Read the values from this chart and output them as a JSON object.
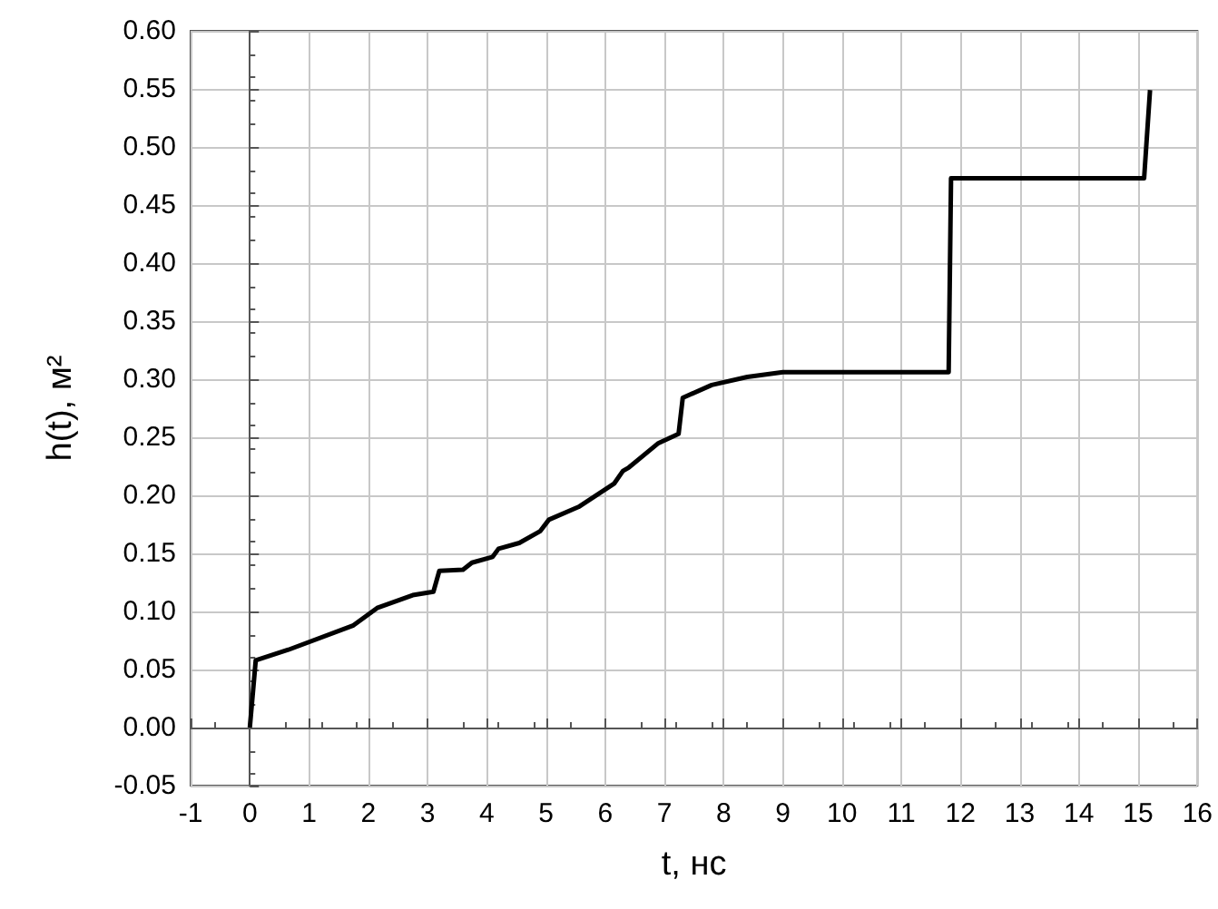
{
  "chart_data": {
    "type": "line",
    "xlabel": "t, нс",
    "ylabel": "h(t), м²",
    "xlim": [
      -1,
      16
    ],
    "xticks": [
      -1,
      0,
      1,
      2,
      3,
      4,
      5,
      6,
      7,
      8,
      9,
      10,
      11,
      12,
      13,
      14,
      15,
      16
    ],
    "ylim": [
      -0.05,
      0.6
    ],
    "yticks": [
      {
        "value": -0.05,
        "label": "-0.05"
      },
      {
        "value": 0,
        "label": "0.00"
      },
      {
        "value": 0.05,
        "label": "0.05"
      },
      {
        "value": 0.1,
        "label": "0.10"
      },
      {
        "value": 0.15,
        "label": "0.15"
      },
      {
        "value": 0.2,
        "label": "0.20"
      },
      {
        "value": 0.25,
        "label": "0.25"
      },
      {
        "value": 0.3,
        "label": "0.30"
      },
      {
        "value": 0.35,
        "label": "0.35"
      },
      {
        "value": 0.4,
        "label": "0.40"
      },
      {
        "value": 0.45,
        "label": "0.45"
      },
      {
        "value": 0.5,
        "label": "0.50"
      },
      {
        "value": 0.55,
        "label": "0.55"
      },
      {
        "value": 0.6,
        "label": "0.60"
      }
    ],
    "grid": true,
    "marker": "none",
    "line_style": "solid",
    "series": [
      {
        "color": "#000000",
        "x": [
          0,
          0.1,
          0.65,
          1.75,
          2.15,
          2.75,
          3.1,
          3.2,
          3.6,
          3.75,
          4.1,
          4.2,
          4.55,
          4.9,
          5.05,
          5.55,
          6.15,
          6.3,
          6.4,
          6.9,
          7.24,
          7.31,
          7.8,
          8.4,
          9.0,
          11.8,
          11.84,
          15.1,
          15.2
        ],
        "values": [
          0,
          0.058,
          0.067,
          0.088,
          0.103,
          0.114,
          0.117,
          0.135,
          0.136,
          0.142,
          0.147,
          0.154,
          0.159,
          0.169,
          0.179,
          0.19,
          0.21,
          0.221,
          0.224,
          0.245,
          0.253,
          0.284,
          0.295,
          0.302,
          0.306,
          0.306,
          0.473,
          0.473,
          0.549
        ]
      }
    ]
  }
}
